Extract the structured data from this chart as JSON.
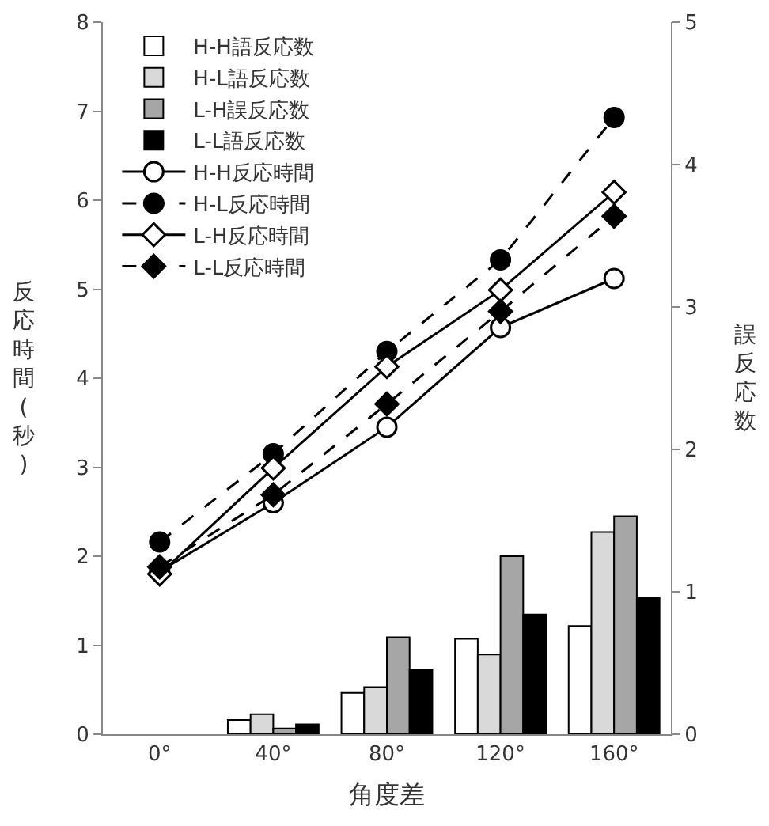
{
  "chart_data": {
    "type": "bar",
    "categories": [
      "0°",
      "40°",
      "80°",
      "120°",
      "160°"
    ],
    "xlabel": "角度差",
    "ylabel": "反応時間(秒)",
    "y2label": "誤反応数",
    "series": [
      {
        "name": "H-H語反応数",
        "axis": "y2",
        "color": "#ffffff",
        "values": [
          null,
          0.1,
          0.29,
          0.67,
          0.76
        ]
      },
      {
        "name": "H-L語反応数",
        "axis": "y2",
        "color": "#d9d9d9",
        "values": [
          null,
          0.14,
          0.33,
          0.56,
          1.42
        ]
      },
      {
        "name": "L-H誤反応数",
        "axis": "y2",
        "color": "#a6a6a6",
        "values": [
          null,
          0.04,
          0.68,
          1.25,
          1.53
        ]
      },
      {
        "name": "L-L語反応数",
        "axis": "y2",
        "color": "#000000",
        "values": [
          null,
          0.07,
          0.45,
          0.84,
          0.96
        ]
      },
      {
        "name": "H-H反応時間",
        "type": "line",
        "color": "#000000",
        "marker": "circle",
        "line_style": "solid",
        "values": [
          1.83,
          2.6,
          3.45,
          4.57,
          5.12
        ]
      },
      {
        "name": "H-L反応時間",
        "type": "line",
        "color": "#000000",
        "marker": "circle",
        "line_style": "dashed",
        "values": [
          2.16,
          3.15,
          4.3,
          5.33,
          6.93
        ]
      },
      {
        "name": "L-H反応時間",
        "type": "line",
        "color": "#000000",
        "marker": "diamond",
        "line_style": "solid",
        "values": [
          1.8,
          2.99,
          4.13,
          4.99,
          6.09
        ]
      },
      {
        "name": "L-L反応時間",
        "type": "line",
        "color": "#000000",
        "marker": "diamond",
        "line_style": "dashed",
        "values": [
          1.88,
          2.69,
          3.71,
          4.75,
          5.82
        ]
      }
    ],
    "ylim": [
      0,
      8
    ],
    "yticks": [
      0,
      1,
      2,
      3,
      4,
      5,
      6,
      7,
      8
    ],
    "y2lim": [
      0,
      5
    ],
    "y2ticks": [
      0,
      1,
      2,
      3,
      4,
      5
    ],
    "grid": false,
    "legend": "top left"
  }
}
